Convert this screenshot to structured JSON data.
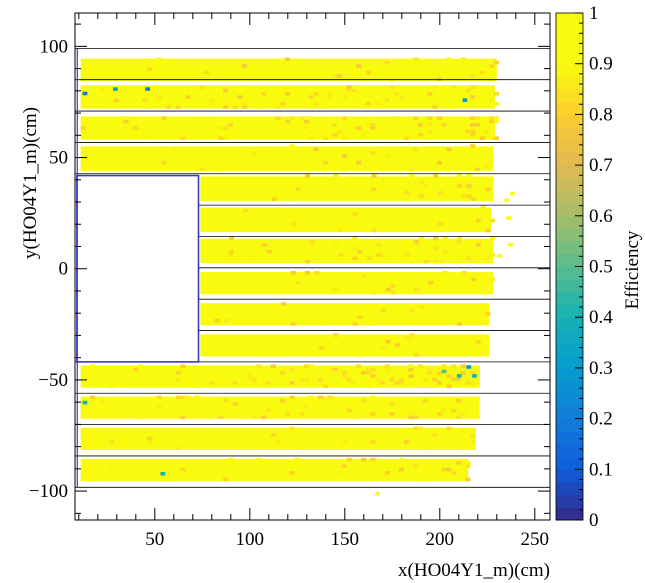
{
  "chart_data": {
    "type": "heatmap",
    "xlabel": "x(HO04Y1_m)(cm)",
    "ylabel": "y(HO04Y1_m)(cm)",
    "colorbar_label": "Efficiency",
    "xlim": [
      8,
      258
    ],
    "ylim": [
      -113,
      115
    ],
    "zlim": [
      0,
      1
    ],
    "x_ticks": [
      50,
      100,
      150,
      200,
      250
    ],
    "x_tick_labels": [
      "50",
      "100",
      "150",
      "200",
      "250"
    ],
    "y_ticks": [
      -100,
      -50,
      0,
      50,
      100
    ],
    "y_tick_labels": [
      "−100",
      "−50",
      "0",
      "50",
      "100"
    ],
    "z_ticks": [
      0,
      0.1,
      0.2,
      0.3,
      0.4,
      0.5,
      0.6,
      0.7,
      0.8,
      0.9,
      1
    ],
    "z_tick_labels": [
      "0",
      "0.1",
      "0.2",
      "0.3",
      "0.4",
      "0.5",
      "0.6",
      "0.7",
      "0.8",
      "0.9",
      "1"
    ],
    "dominant_efficiency": 1.0,
    "slab_boundaries_y": [
      -98.3,
      -84.2,
      -70.1,
      -56,
      -41.9,
      -27.8,
      -13.7,
      0.4,
      14.5,
      28.6,
      42.7,
      56.8,
      70.9,
      85,
      99.1
    ],
    "hole_region": {
      "x": [
        9,
        73
      ],
      "y": [
        -41.9,
        41.9
      ]
    },
    "strips": [
      {
        "y": [
          84.5,
          94.5
        ],
        "x": [
          11,
          230
        ],
        "efficiency": 0.99
      },
      {
        "y": [
          72.0,
          82.5
        ],
        "x": [
          11,
          229
        ],
        "efficiency": 0.98
      },
      {
        "y": [
          58.0,
          68.5
        ],
        "x": [
          11,
          229
        ],
        "efficiency": 0.97
      },
      {
        "y": [
          44.0,
          55.0
        ],
        "x": [
          11,
          228
        ],
        "efficiency": 0.99
      },
      {
        "y": [
          30.5,
          41.5
        ],
        "x": [
          74,
          228
        ],
        "efficiency": 0.99
      },
      {
        "y": [
          16.5,
          27.5
        ],
        "x": [
          74,
          227
        ],
        "efficiency": 0.99
      },
      {
        "y": [
          2.5,
          13.5
        ],
        "x": [
          74,
          228
        ],
        "efficiency": 0.97
      },
      {
        "y": [
          -11.5,
          -1.5
        ],
        "x": [
          74,
          228
        ],
        "efficiency": 0.99
      },
      {
        "y": [
          -25.5,
          -15.5
        ],
        "x": [
          74,
          226
        ],
        "efficiency": 0.99
      },
      {
        "y": [
          -39.5,
          -29.5
        ],
        "x": [
          74,
          226
        ],
        "efficiency": 0.99
      },
      {
        "y": [
          -53.5,
          -43.5
        ],
        "x": [
          11,
          221
        ],
        "efficiency": 0.96
      },
      {
        "y": [
          -67.5,
          -57.5
        ],
        "x": [
          11,
          221
        ],
        "efficiency": 0.98
      },
      {
        "y": [
          -81.5,
          -71.5
        ],
        "x": [
          11,
          219
        ],
        "efficiency": 0.99
      },
      {
        "y": [
          -95.5,
          -85.5
        ],
        "x": [
          11,
          215
        ],
        "efficiency": 0.99
      }
    ],
    "low_efficiency_cells": [
      {
        "x": 12,
        "y": 78,
        "z": 0.2
      },
      {
        "x": 28,
        "y": 80,
        "z": 0.3
      },
      {
        "x": 45,
        "y": 80,
        "z": 0.2
      },
      {
        "x": 212,
        "y": 75,
        "z": 0.3
      },
      {
        "x": 201,
        "y": -47,
        "z": 0.5
      },
      {
        "x": 209,
        "y": -49,
        "z": 0.4
      },
      {
        "x": 214,
        "y": -45,
        "z": 0.3
      },
      {
        "x": 217,
        "y": -49,
        "z": 0.4
      },
      {
        "x": 12,
        "y": -61,
        "z": 0.4
      },
      {
        "x": 53,
        "y": -93,
        "z": 0.4
      }
    ],
    "stray_cells": [
      {
        "x": 237,
        "y": 33,
        "z": 1.0
      },
      {
        "x": 235,
        "y": 22,
        "z": 1.0
      },
      {
        "x": 236,
        "y": 10,
        "z": 1.0
      },
      {
        "x": 230,
        "y": 5,
        "z": 1.0
      },
      {
        "x": 234,
        "y": 30,
        "z": 1.0
      },
      {
        "x": 166,
        "y": -102,
        "z": 1.0
      }
    ]
  }
}
